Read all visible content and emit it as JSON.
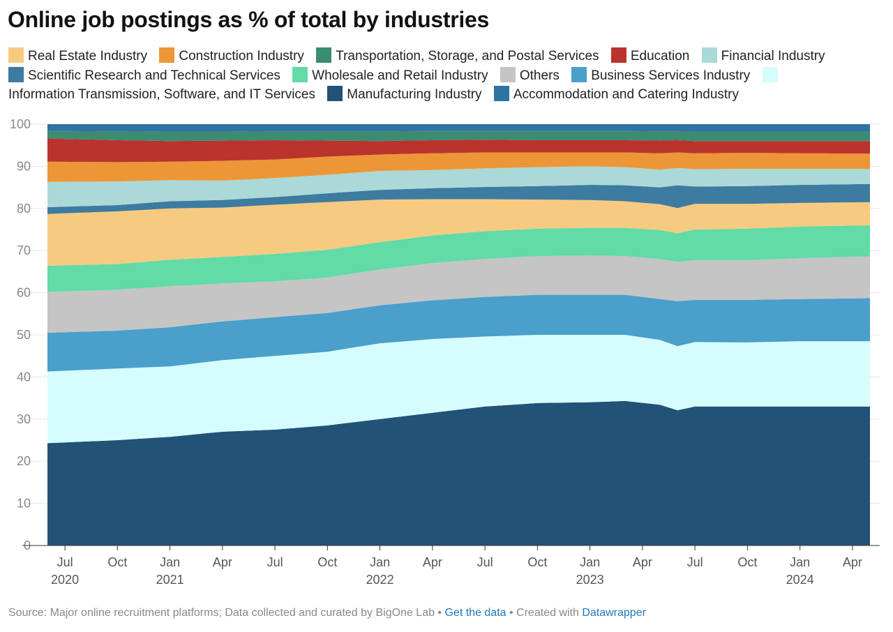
{
  "title": "Online job postings as % of total by industries",
  "footer": {
    "source": "Source: Major online recruitment platforms; Data collected and curated by BigOne Lab",
    "sep1": " • ",
    "get_data": "Get the data",
    "sep2": " • Created with ",
    "datawrapper": "Datawrapper"
  },
  "chart_data": {
    "type": "area",
    "stacked": true,
    "legend_placement": "top",
    "grid": true,
    "ylim": [
      0,
      100
    ],
    "yticks": [
      0,
      10,
      20,
      30,
      40,
      50,
      60,
      70,
      80,
      90,
      100
    ],
    "x_start": "2020-06",
    "x_end": "2024-05",
    "x_ticks": [
      {
        "month": "2020-07",
        "label": "Jul",
        "year": "2020"
      },
      {
        "month": "2020-10",
        "label": "Oct",
        "year": ""
      },
      {
        "month": "2021-01",
        "label": "Jan",
        "year": "2021"
      },
      {
        "month": "2021-04",
        "label": "Apr",
        "year": ""
      },
      {
        "month": "2021-07",
        "label": "Jul",
        "year": ""
      },
      {
        "month": "2021-10",
        "label": "Oct",
        "year": ""
      },
      {
        "month": "2022-01",
        "label": "Jan",
        "year": "2022"
      },
      {
        "month": "2022-04",
        "label": "Apr",
        "year": ""
      },
      {
        "month": "2022-07",
        "label": "Jul",
        "year": ""
      },
      {
        "month": "2022-10",
        "label": "Oct",
        "year": ""
      },
      {
        "month": "2023-01",
        "label": "Jan",
        "year": "2023"
      },
      {
        "month": "2023-04",
        "label": "Apr",
        "year": ""
      },
      {
        "month": "2023-07",
        "label": "Jul",
        "year": ""
      },
      {
        "month": "2023-10",
        "label": "Oct",
        "year": ""
      },
      {
        "month": "2024-01",
        "label": "Jan",
        "year": "2024"
      },
      {
        "month": "2024-04",
        "label": "Apr",
        "year": ""
      }
    ],
    "legend_order": [
      "Real Estate Industry",
      "Construction Industry",
      "Transportation, Storage, and Postal Services",
      "Education",
      "Financial Industry",
      "Scientific Research and Technical Services",
      "Wholesale and Retail Industry",
      "Others",
      "Business Services Industry",
      "Information Transmission, Software, and IT Services",
      "Manufacturing Industry",
      "Accommodation and Catering Industry"
    ],
    "series": [
      {
        "name": "Manufacturing Industry",
        "color": "#235277",
        "points": [
          [
            "2020-06",
            24.3
          ],
          [
            "2020-10",
            25.0
          ],
          [
            "2021-01",
            25.8
          ],
          [
            "2021-04",
            27.0
          ],
          [
            "2021-07",
            27.5
          ],
          [
            "2021-10",
            28.5
          ],
          [
            "2022-01",
            30.0
          ],
          [
            "2022-04",
            31.5
          ],
          [
            "2022-07",
            33.0
          ],
          [
            "2022-10",
            33.8
          ],
          [
            "2023-01",
            34.0
          ],
          [
            "2023-03",
            34.3
          ],
          [
            "2023-05",
            33.4
          ],
          [
            "2023-06",
            32.1
          ],
          [
            "2023-07",
            33.0
          ],
          [
            "2023-10",
            33.0
          ],
          [
            "2024-01",
            33.0
          ],
          [
            "2024-05",
            33.0
          ]
        ]
      },
      {
        "name": "Information Transmission, Software, and IT Services",
        "color": "#d5fdfd",
        "points": [
          [
            "2020-06",
            41.3
          ],
          [
            "2020-10",
            42.0
          ],
          [
            "2021-01",
            42.5
          ],
          [
            "2021-04",
            44.0
          ],
          [
            "2021-07",
            45.0
          ],
          [
            "2021-10",
            46.0
          ],
          [
            "2022-01",
            48.0
          ],
          [
            "2022-04",
            49.0
          ],
          [
            "2022-07",
            49.6
          ],
          [
            "2022-10",
            50.0
          ],
          [
            "2023-01",
            50.0
          ],
          [
            "2023-03",
            50.0
          ],
          [
            "2023-05",
            48.8
          ],
          [
            "2023-06",
            47.3
          ],
          [
            "2023-07",
            48.3
          ],
          [
            "2023-10",
            48.2
          ],
          [
            "2024-01",
            48.5
          ],
          [
            "2024-05",
            48.5
          ]
        ]
      },
      {
        "name": "Business Services Industry",
        "color": "#4a9fcb",
        "points": [
          [
            "2020-06",
            50.5
          ],
          [
            "2020-10",
            51.0
          ],
          [
            "2021-01",
            51.8
          ],
          [
            "2021-04",
            53.2
          ],
          [
            "2021-07",
            54.2
          ],
          [
            "2021-10",
            55.2
          ],
          [
            "2022-01",
            57.0
          ],
          [
            "2022-04",
            58.2
          ],
          [
            "2022-07",
            59.0
          ],
          [
            "2022-10",
            59.5
          ],
          [
            "2023-01",
            59.5
          ],
          [
            "2023-03",
            59.5
          ],
          [
            "2023-05",
            58.5
          ],
          [
            "2023-06",
            58.0
          ],
          [
            "2023-07",
            58.3
          ],
          [
            "2023-10",
            58.3
          ],
          [
            "2024-01",
            58.5
          ],
          [
            "2024-05",
            58.7
          ]
        ]
      },
      {
        "name": "Others",
        "color": "#c5c5c5",
        "points": [
          [
            "2020-06",
            60.2
          ],
          [
            "2020-10",
            60.7
          ],
          [
            "2021-01",
            61.5
          ],
          [
            "2021-04",
            62.2
          ],
          [
            "2021-07",
            62.7
          ],
          [
            "2021-10",
            63.6
          ],
          [
            "2022-01",
            65.5
          ],
          [
            "2022-04",
            67.0
          ],
          [
            "2022-07",
            68.0
          ],
          [
            "2022-10",
            68.7
          ],
          [
            "2023-01",
            68.8
          ],
          [
            "2023-03",
            68.7
          ],
          [
            "2023-05",
            68.0
          ],
          [
            "2023-06",
            67.3
          ],
          [
            "2023-07",
            67.7
          ],
          [
            "2023-10",
            67.7
          ],
          [
            "2024-01",
            68.2
          ],
          [
            "2024-05",
            68.6
          ]
        ]
      },
      {
        "name": "Wholesale and Retail Industry",
        "color": "#62dba6",
        "points": [
          [
            "2020-06",
            66.4
          ],
          [
            "2020-10",
            66.8
          ],
          [
            "2021-01",
            67.8
          ],
          [
            "2021-04",
            68.5
          ],
          [
            "2021-07",
            69.2
          ],
          [
            "2021-10",
            70.2
          ],
          [
            "2022-01",
            72.0
          ],
          [
            "2022-04",
            73.6
          ],
          [
            "2022-07",
            74.6
          ],
          [
            "2022-10",
            75.2
          ],
          [
            "2023-01",
            75.4
          ],
          [
            "2023-03",
            75.4
          ],
          [
            "2023-05",
            74.9
          ],
          [
            "2023-06",
            74.1
          ],
          [
            "2023-07",
            75.0
          ],
          [
            "2023-10",
            75.2
          ],
          [
            "2024-01",
            75.7
          ],
          [
            "2024-05",
            76.0
          ]
        ]
      },
      {
        "name": "Real Estate Industry",
        "color": "#f7ca82",
        "points": [
          [
            "2020-06",
            78.7
          ],
          [
            "2020-10",
            79.3
          ],
          [
            "2021-01",
            80.0
          ],
          [
            "2021-04",
            80.2
          ],
          [
            "2021-07",
            80.9
          ],
          [
            "2021-10",
            81.5
          ],
          [
            "2022-01",
            82.1
          ],
          [
            "2022-04",
            82.2
          ],
          [
            "2022-07",
            82.2
          ],
          [
            "2022-10",
            82.1
          ],
          [
            "2023-01",
            82.0
          ],
          [
            "2023-03",
            81.7
          ],
          [
            "2023-05",
            81.0
          ],
          [
            "2023-06",
            80.1
          ],
          [
            "2023-07",
            81.1
          ],
          [
            "2023-10",
            81.1
          ],
          [
            "2024-01",
            81.3
          ],
          [
            "2024-05",
            81.5
          ]
        ]
      },
      {
        "name": "Scientific Research and Technical Services",
        "color": "#3e7ba0",
        "points": [
          [
            "2020-06",
            80.3
          ],
          [
            "2020-10",
            80.8
          ],
          [
            "2021-01",
            81.7
          ],
          [
            "2021-04",
            82.0
          ],
          [
            "2021-07",
            82.7
          ],
          [
            "2021-10",
            83.6
          ],
          [
            "2022-01",
            84.4
          ],
          [
            "2022-04",
            84.8
          ],
          [
            "2022-07",
            85.1
          ],
          [
            "2022-10",
            85.3
          ],
          [
            "2023-01",
            85.6
          ],
          [
            "2023-03",
            85.5
          ],
          [
            "2023-05",
            85.0
          ],
          [
            "2023-06",
            85.5
          ],
          [
            "2023-07",
            85.2
          ],
          [
            "2023-10",
            85.3
          ],
          [
            "2024-01",
            85.6
          ],
          [
            "2024-05",
            85.8
          ]
        ]
      },
      {
        "name": "Financial Industry",
        "color": "#abd9d8",
        "points": [
          [
            "2020-06",
            86.3
          ],
          [
            "2020-10",
            86.4
          ],
          [
            "2021-01",
            86.7
          ],
          [
            "2021-04",
            86.6
          ],
          [
            "2021-07",
            87.2
          ],
          [
            "2021-10",
            88.0
          ],
          [
            "2022-01",
            88.9
          ],
          [
            "2022-04",
            89.1
          ],
          [
            "2022-07",
            89.5
          ],
          [
            "2022-10",
            89.8
          ],
          [
            "2023-01",
            90.0
          ],
          [
            "2023-03",
            89.8
          ],
          [
            "2023-05",
            89.2
          ],
          [
            "2023-06",
            89.6
          ],
          [
            "2023-07",
            89.3
          ],
          [
            "2023-10",
            89.4
          ],
          [
            "2024-01",
            89.4
          ],
          [
            "2024-05",
            89.4
          ]
        ]
      },
      {
        "name": "Construction Industry",
        "color": "#ec9637",
        "points": [
          [
            "2020-06",
            91.1
          ],
          [
            "2020-10",
            91.0
          ],
          [
            "2021-01",
            91.1
          ],
          [
            "2021-04",
            91.3
          ],
          [
            "2021-07",
            91.6
          ],
          [
            "2021-10",
            92.3
          ],
          [
            "2022-01",
            92.8
          ],
          [
            "2022-04",
            93.1
          ],
          [
            "2022-07",
            93.3
          ],
          [
            "2022-10",
            93.3
          ],
          [
            "2023-01",
            93.3
          ],
          [
            "2023-03",
            93.3
          ],
          [
            "2023-05",
            93.1
          ],
          [
            "2023-06",
            93.3
          ],
          [
            "2023-07",
            93.1
          ],
          [
            "2023-10",
            93.2
          ],
          [
            "2024-01",
            93.1
          ],
          [
            "2024-05",
            93.0
          ]
        ]
      },
      {
        "name": "Education",
        "color": "#bb332d",
        "points": [
          [
            "2020-06",
            96.6
          ],
          [
            "2020-10",
            96.2
          ],
          [
            "2021-01",
            96.0
          ],
          [
            "2021-04",
            96.1
          ],
          [
            "2021-07",
            96.2
          ],
          [
            "2021-10",
            96.1
          ],
          [
            "2022-01",
            96.0
          ],
          [
            "2022-04",
            96.2
          ],
          [
            "2022-07",
            96.3
          ],
          [
            "2022-10",
            96.2
          ],
          [
            "2023-01",
            96.2
          ],
          [
            "2023-03",
            96.2
          ],
          [
            "2023-05",
            96.1
          ],
          [
            "2023-06",
            96.2
          ],
          [
            "2023-07",
            96.0
          ],
          [
            "2023-10",
            96.0
          ],
          [
            "2024-01",
            96.0
          ],
          [
            "2024-05",
            96.0
          ]
        ]
      },
      {
        "name": "Transportation, Storage, and Postal Services",
        "color": "#3b8c71",
        "points": [
          [
            "2020-06",
            98.4
          ],
          [
            "2020-10",
            98.3
          ],
          [
            "2021-01",
            98.2
          ],
          [
            "2021-04",
            98.2
          ],
          [
            "2021-07",
            98.3
          ],
          [
            "2021-10",
            98.3
          ],
          [
            "2022-01",
            98.3
          ],
          [
            "2022-04",
            98.4
          ],
          [
            "2022-07",
            98.4
          ],
          [
            "2022-10",
            98.4
          ],
          [
            "2023-01",
            98.4
          ],
          [
            "2023-03",
            98.4
          ],
          [
            "2023-05",
            98.3
          ],
          [
            "2023-06",
            98.3
          ],
          [
            "2023-07",
            98.2
          ],
          [
            "2023-10",
            98.2
          ],
          [
            "2024-01",
            98.2
          ],
          [
            "2024-05",
            98.2
          ]
        ]
      },
      {
        "name": "Accommodation and Catering Industry",
        "color": "#2f73a2",
        "points": [
          [
            "2020-06",
            100
          ],
          [
            "2024-05",
            100
          ]
        ]
      }
    ]
  }
}
